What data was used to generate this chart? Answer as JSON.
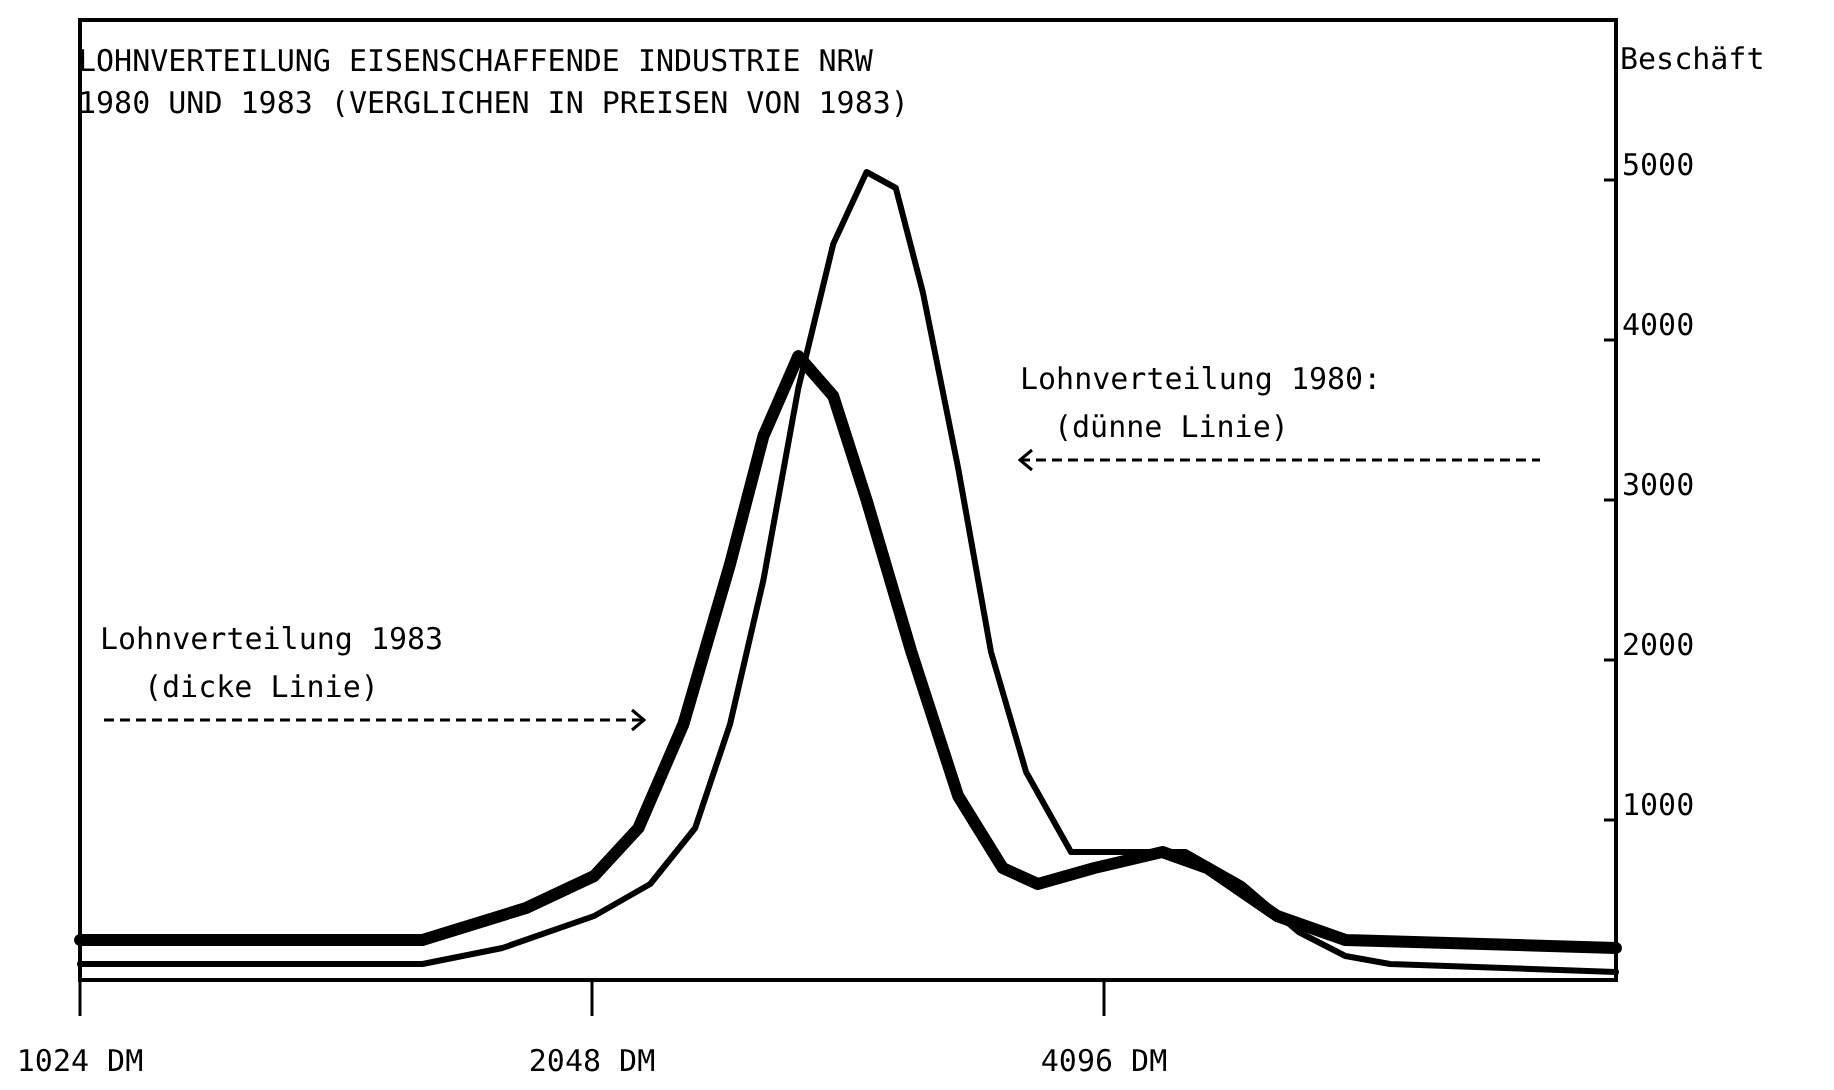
{
  "chart_data": {
    "type": "line",
    "title": "LOHNVERTEILUNG EISENSCHAFFENDE INDUSTRIE NRW",
    "subtitle": "1980 UND 1983 (VERGLICHEN IN PREISEN VON 1983)",
    "ylabel": "Beschäft",
    "annotations": [
      "Lohnverteilung 1983",
      "(dicke Linie)",
      "Lohnverteilung 1980:",
      "(dünne Linie)"
    ],
    "log": "x",
    "xlim": [
      1024,
      8192
    ],
    "xticks": [
      {
        "value": 1024,
        "label": "1024 DM"
      },
      {
        "value": 2048,
        "label": "2048 DM"
      },
      {
        "value": 4096,
        "label": "4096 DM"
      }
    ],
    "ylim": [
      0,
      6000
    ],
    "yticks": [
      1000,
      2000,
      3000,
      4000,
      5000
    ],
    "grid": false,
    "marker": "none",
    "line_style": "solid",
    "series": [
      {
        "color": "#000000",
        "x": [
          1024,
          1628,
          1814,
          2054,
          2216,
          2355,
          2469,
          2583,
          2708,
          2839,
          2970,
          3090,
          3205,
          3362,
          3515,
          3686,
          3917,
          4295,
          4576,
          4939,
          5331,
          5679,
          6033,
          8192
        ],
        "values": [
          100,
          100,
          200,
          400,
          600,
          950,
          1600,
          2500,
          3700,
          4600,
          5050,
          4950,
          4300,
          3200,
          2050,
          1300,
          800,
          800,
          800,
          600,
          300,
          150,
          100,
          50
        ]
      },
      {
        "color": "#000000",
        "x": [
          1024,
          1628,
          1873,
          2054,
          2181,
          2318,
          2469,
          2583,
          2708,
          2839,
          2970,
          3156,
          3362,
          3571,
          3745,
          4043,
          4433,
          4711,
          5178,
          5679,
          8192
        ],
        "values": [
          250,
          250,
          450,
          650,
          950,
          1600,
          2600,
          3400,
          3900,
          3650,
          3000,
          2050,
          1150,
          700,
          600,
          700,
          800,
          700,
          400,
          250,
          200
        ]
      }
    ]
  }
}
